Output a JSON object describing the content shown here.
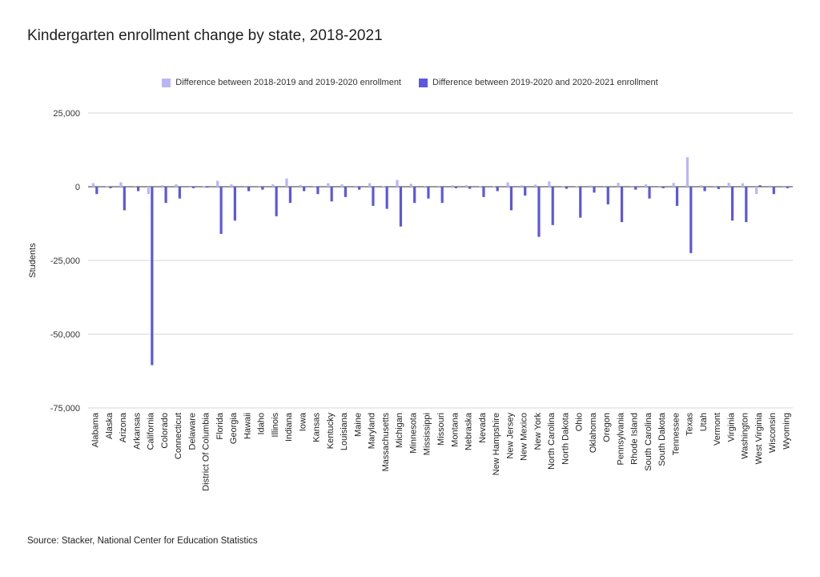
{
  "chart_data": {
    "type": "bar",
    "title": "Kindergarten enrollment change by state, 2018-2021",
    "xlabel": "",
    "ylabel": "Students",
    "ylim": [
      -75000,
      25000
    ],
    "yticks": [
      25000,
      0,
      -25000,
      -50000,
      -75000
    ],
    "ytick_labels": [
      "25,000",
      "0",
      "-25,000",
      "-50,000",
      "-75,000"
    ],
    "grid": true,
    "legend_position": "top",
    "categories": [
      "Alabama",
      "Alaska",
      "Arizona",
      "Arkansas",
      "California",
      "Colorado",
      "Connecticut",
      "Delaware",
      "District Of Columbia",
      "Florida",
      "Georgia",
      "Hawaii",
      "Idaho",
      "Illinois",
      "Indiana",
      "Iowa",
      "Kansas",
      "Kentucky",
      "Louisiana",
      "Maine",
      "Maryland",
      "Massachusetts",
      "Michigan",
      "Minnesota",
      "Mississippi",
      "Missouri",
      "Montana",
      "Nebraska",
      "Nevada",
      "New Hampshire",
      "New Jersey",
      "New Mexico",
      "New York",
      "North Carolina",
      "North Dakota",
      "Ohio",
      "Oklahoma",
      "Oregon",
      "Pennsylvania",
      "Rhode Island",
      "South Carolina",
      "South Dakota",
      "Tennessee",
      "Texas",
      "Utah",
      "Vermont",
      "Virginia",
      "Washington",
      "West Virginia",
      "Wisconsin",
      "Wyoming"
    ],
    "series": [
      {
        "name": "Difference between 2018-2019 and 2019-2020 enrollment",
        "color": "#b9b6f7",
        "values": [
          1200,
          200,
          1500,
          300,
          -2500,
          500,
          800,
          -300,
          200,
          2000,
          800,
          300,
          300,
          800,
          2800,
          600,
          200,
          1200,
          800,
          300,
          1200,
          200,
          2300,
          1000,
          300,
          300,
          500,
          500,
          200,
          200,
          1500,
          500,
          700,
          1800,
          200,
          200,
          400,
          300,
          1300,
          300,
          800,
          300,
          1300,
          10000,
          500,
          300,
          1300,
          1200,
          -2500,
          400,
          300
        ]
      },
      {
        "name": "Difference between 2019-2020 and 2020-2021 enrollment",
        "color": "#5c57e0",
        "values": [
          -2500,
          -500,
          -8000,
          -1500,
          -60500,
          -5500,
          -4000,
          -500,
          -300,
          -16000,
          -11500,
          -1500,
          -1000,
          -10000,
          -5500,
          -1500,
          -2500,
          -5000,
          -3500,
          -1000,
          -6500,
          -7500,
          -13500,
          -5500,
          -4000,
          -5500,
          -500,
          -700,
          -3500,
          -1500,
          -8000,
          -3000,
          -17000,
          -13000,
          -700,
          -10500,
          -2000,
          -6000,
          -12000,
          -1000,
          -4000,
          -500,
          -6500,
          -22500,
          -1500,
          -800,
          -11500,
          -12000,
          500,
          -2500,
          -500
        ]
      }
    ]
  },
  "source": "Source: Stacker, National Center for Education Statistics"
}
